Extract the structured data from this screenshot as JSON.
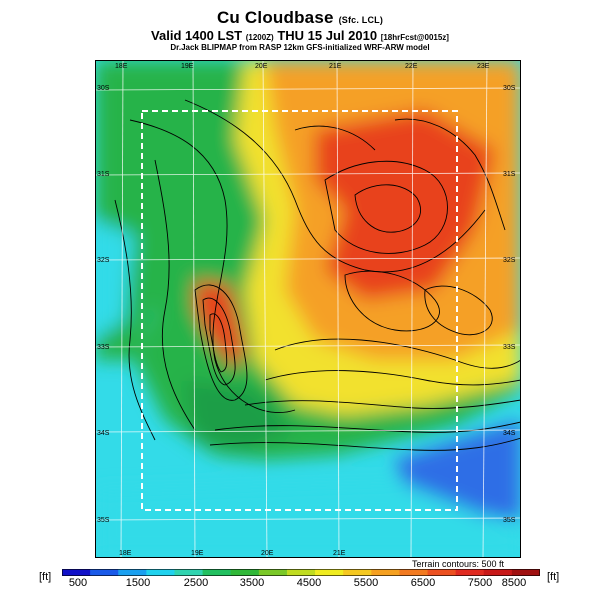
{
  "header": {
    "title": "Cu Cloudbase",
    "title_suffix": "(Sfc. LCL)",
    "valid_line": "Valid 1400 LST",
    "valid_code": "(1200Z)",
    "valid_date": "THU 15 Jul 2010",
    "valid_forecast": "[18hrFcst@0015z]",
    "credit": "Dr.Jack BLIPMAP from RASP 12km GFS-initialized WRF-ARW model"
  },
  "map": {
    "lon_labels_top": [
      "18E",
      "19E",
      "20E",
      "21E",
      "22E",
      "23E"
    ],
    "lon_labels_bottom": [
      "18E",
      "19E",
      "20E",
      "21E"
    ],
    "lat_labels_left": [
      "30S",
      "31S",
      "32S",
      "33S",
      "34S",
      "35S"
    ],
    "lat_labels_right": [
      "30S",
      "31S",
      "32S",
      "33S",
      "34S",
      "35S"
    ],
    "field": "Cu cloudbase height",
    "contours": "terrain",
    "colors": {
      "ocean_cyan": "#33dbe8",
      "green": "#27b34a",
      "yellow": "#f2e12e",
      "orange": "#f5a028",
      "red": "#e8421f",
      "blue": "#2d6ee6"
    }
  },
  "contour_note": "Terrain contours: 500 ft",
  "colorbar": {
    "unit": "[ft]",
    "ticks": [
      "500",
      "1500",
      "2500",
      "3500",
      "4500",
      "5500",
      "6500",
      "7500",
      "8500"
    ],
    "colors": [
      "#1010c8",
      "#1a5ae8",
      "#1aa0f0",
      "#20d2ee",
      "#30d4b0",
      "#22c060",
      "#30b838",
      "#7ac828",
      "#c0dc20",
      "#f0ec20",
      "#f5c820",
      "#f5a020",
      "#f27a20",
      "#ec5020",
      "#e02a20",
      "#c81818",
      "#a01010"
    ]
  }
}
